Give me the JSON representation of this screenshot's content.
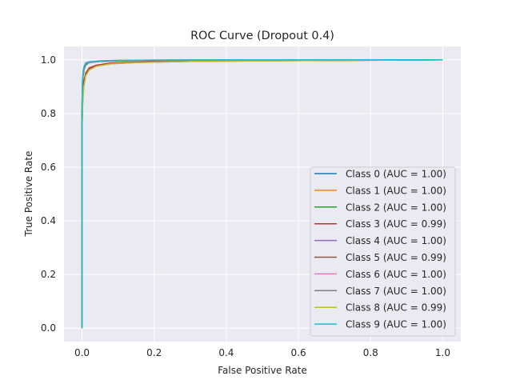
{
  "chart_data": {
    "type": "line",
    "title": "ROC Curve (Dropout 0.4)",
    "xlabel": "False Positive Rate",
    "ylabel": "True Positive Rate",
    "xlim": [
      -0.05,
      1.05
    ],
    "ylim": [
      -0.05,
      1.05
    ],
    "xticks": [
      "0.0",
      "0.2",
      "0.4",
      "0.6",
      "0.8",
      "1.0"
    ],
    "yticks": [
      "0.0",
      "0.2",
      "0.4",
      "0.6",
      "0.8",
      "1.0"
    ],
    "grid": true,
    "legend_position": "lower-right",
    "series": [
      {
        "name": "Class 0 (AUC = 1.00)",
        "color": "#1f77b4",
        "x": [
          0,
          0,
          0.001,
          0.003,
          0.006,
          0.01,
          0.02,
          0.05,
          0.1,
          0.2,
          0.4,
          0.6,
          0.8,
          1.0
        ],
        "y": [
          0,
          0.8,
          0.9,
          0.95,
          0.97,
          0.985,
          0.99,
          0.995,
          0.997,
          0.998,
          0.999,
          1.0,
          1.0,
          1.0
        ]
      },
      {
        "name": "Class 1 (AUC = 1.00)",
        "color": "#ff7f0e",
        "x": [
          0,
          0,
          0.001,
          0.003,
          0.006,
          0.01,
          0.02,
          0.05,
          0.1,
          0.2,
          0.4,
          0.6,
          0.8,
          1.0
        ],
        "y": [
          0,
          0.82,
          0.91,
          0.955,
          0.975,
          0.988,
          0.992,
          0.996,
          0.998,
          0.999,
          1.0,
          1.0,
          1.0,
          1.0
        ]
      },
      {
        "name": "Class 2 (AUC = 1.00)",
        "color": "#2ca02c",
        "x": [
          0,
          0,
          0.001,
          0.003,
          0.006,
          0.01,
          0.02,
          0.05,
          0.1,
          0.2,
          0.4,
          0.6,
          0.8,
          1.0
        ],
        "y": [
          0,
          0.79,
          0.89,
          0.94,
          0.965,
          0.98,
          0.99,
          0.994,
          0.996,
          0.998,
          0.999,
          1.0,
          1.0,
          1.0
        ]
      },
      {
        "name": "Class 3 (AUC = 0.99)",
        "color": "#d62728",
        "x": [
          0,
          0,
          0.002,
          0.005,
          0.01,
          0.02,
          0.04,
          0.08,
          0.15,
          0.3,
          0.5,
          0.7,
          0.9,
          1.0
        ],
        "y": [
          0,
          0.75,
          0.86,
          0.92,
          0.95,
          0.97,
          0.98,
          0.988,
          0.992,
          0.995,
          0.997,
          0.998,
          0.999,
          1.0
        ]
      },
      {
        "name": "Class 4 (AUC = 1.00)",
        "color": "#9467bd",
        "x": [
          0,
          0,
          0.001,
          0.003,
          0.006,
          0.01,
          0.02,
          0.05,
          0.1,
          0.2,
          0.4,
          0.6,
          0.8,
          1.0
        ],
        "y": [
          0,
          0.81,
          0.9,
          0.95,
          0.97,
          0.984,
          0.99,
          0.994,
          0.997,
          0.998,
          0.999,
          1.0,
          1.0,
          1.0
        ]
      },
      {
        "name": "Class 5 (AUC = 0.99)",
        "color": "#8c564b",
        "x": [
          0,
          0,
          0.002,
          0.005,
          0.01,
          0.02,
          0.04,
          0.08,
          0.15,
          0.3,
          0.5,
          0.7,
          0.9,
          1.0
        ],
        "y": [
          0,
          0.74,
          0.85,
          0.91,
          0.945,
          0.965,
          0.978,
          0.985,
          0.99,
          0.994,
          0.996,
          0.998,
          0.999,
          1.0
        ]
      },
      {
        "name": "Class 6 (AUC = 1.00)",
        "color": "#e377c2",
        "x": [
          0,
          0,
          0.001,
          0.003,
          0.006,
          0.01,
          0.02,
          0.05,
          0.1,
          0.2,
          0.4,
          0.6,
          0.8,
          1.0
        ],
        "y": [
          0,
          0.83,
          0.92,
          0.96,
          0.978,
          0.989,
          0.993,
          0.996,
          0.998,
          0.999,
          1.0,
          1.0,
          1.0,
          1.0
        ]
      },
      {
        "name": "Class 7 (AUC = 1.00)",
        "color": "#7f7f7f",
        "x": [
          0,
          0,
          0.001,
          0.003,
          0.006,
          0.01,
          0.02,
          0.05,
          0.1,
          0.2,
          0.4,
          0.6,
          0.8,
          1.0
        ],
        "y": [
          0,
          0.8,
          0.9,
          0.95,
          0.972,
          0.986,
          0.991,
          0.995,
          0.997,
          0.998,
          0.999,
          1.0,
          1.0,
          1.0
        ]
      },
      {
        "name": "Class 8 (AUC = 0.99)",
        "color": "#bcbd22",
        "x": [
          0,
          0,
          0.002,
          0.005,
          0.01,
          0.02,
          0.04,
          0.08,
          0.15,
          0.3,
          0.5,
          0.7,
          0.9,
          1.0
        ],
        "y": [
          0,
          0.73,
          0.84,
          0.9,
          0.94,
          0.962,
          0.976,
          0.985,
          0.99,
          0.994,
          0.996,
          0.998,
          0.999,
          1.0
        ]
      },
      {
        "name": "Class 9 (AUC = 1.00)",
        "color": "#17becf",
        "x": [
          0,
          0,
          0.001,
          0.003,
          0.006,
          0.01,
          0.02,
          0.05,
          0.1,
          0.2,
          0.4,
          0.6,
          0.8,
          1.0
        ],
        "y": [
          0,
          0.82,
          0.91,
          0.955,
          0.975,
          0.987,
          0.992,
          0.996,
          0.998,
          0.999,
          1.0,
          1.0,
          1.0,
          1.0
        ]
      }
    ]
  }
}
